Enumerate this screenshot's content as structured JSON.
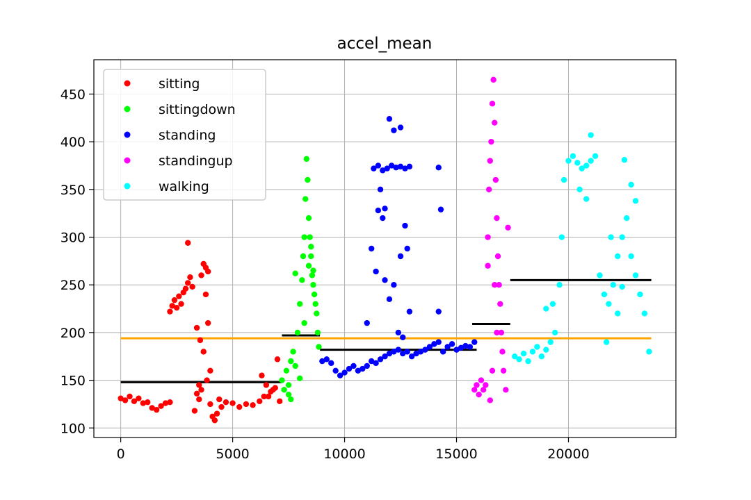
{
  "chart_data": {
    "type": "scatter",
    "title": "accel_mean",
    "xlim": [
      -1200,
      24800
    ],
    "ylim": [
      90,
      486
    ],
    "x_ticks": [
      0,
      5000,
      10000,
      15000,
      20000
    ],
    "y_ticks": [
      100,
      150,
      200,
      250,
      300,
      350,
      400,
      450
    ],
    "grid": true,
    "legend_position": "top-left",
    "series": [
      {
        "name": "sitting",
        "color": "#ff0000",
        "x_range": [
          0,
          7200
        ],
        "mean": 148,
        "points": [
          [
            0,
            131
          ],
          [
            200,
            129
          ],
          [
            400,
            133
          ],
          [
            600,
            128
          ],
          [
            800,
            131
          ],
          [
            1000,
            126
          ],
          [
            1200,
            127
          ],
          [
            1400,
            121
          ],
          [
            1600,
            119
          ],
          [
            1800,
            123
          ],
          [
            2000,
            126
          ],
          [
            2200,
            127
          ],
          [
            2200,
            222
          ],
          [
            2300,
            228
          ],
          [
            2400,
            234
          ],
          [
            2500,
            226
          ],
          [
            2600,
            238
          ],
          [
            2700,
            230
          ],
          [
            2800,
            242
          ],
          [
            2900,
            246
          ],
          [
            3000,
            252
          ],
          [
            3100,
            258
          ],
          [
            3200,
            248
          ],
          [
            3000,
            294
          ],
          [
            3300,
            118
          ],
          [
            3400,
            136
          ],
          [
            3500,
            145
          ],
          [
            3600,
            260
          ],
          [
            3700,
            272
          ],
          [
            3800,
            268
          ],
          [
            3900,
            264
          ],
          [
            3400,
            205
          ],
          [
            3550,
            192
          ],
          [
            3700,
            180
          ],
          [
            3850,
            150
          ],
          [
            4000,
            125
          ],
          [
            4100,
            112
          ],
          [
            4200,
            108
          ],
          [
            4300,
            115
          ],
          [
            4400,
            130
          ],
          [
            4500,
            122
          ],
          [
            4700,
            127
          ],
          [
            5000,
            126
          ],
          [
            5300,
            122
          ],
          [
            5600,
            125
          ],
          [
            5900,
            124
          ],
          [
            6200,
            128
          ],
          [
            6400,
            133
          ],
          [
            6500,
            145
          ],
          [
            6600,
            133
          ],
          [
            6700,
            138
          ],
          [
            6800,
            140
          ],
          [
            6900,
            142
          ],
          [
            7000,
            172
          ],
          [
            7100,
            128
          ],
          [
            6300,
            155
          ],
          [
            3800,
            240
          ],
          [
            3900,
            210
          ],
          [
            4000,
            160
          ],
          [
            3500,
            130
          ],
          [
            3600,
            140
          ]
        ]
      },
      {
        "name": "sittingdown",
        "color": "#00ff00",
        "x_range": [
          7200,
          8900
        ],
        "mean": 197,
        "points": [
          [
            7200,
            150
          ],
          [
            7300,
            140
          ],
          [
            7400,
            160
          ],
          [
            7500,
            145
          ],
          [
            7600,
            170
          ],
          [
            7700,
            180
          ],
          [
            7800,
            165
          ],
          [
            7900,
            200
          ],
          [
            8000,
            230
          ],
          [
            8100,
            255
          ],
          [
            8150,
            280
          ],
          [
            8200,
            300
          ],
          [
            8250,
            340
          ],
          [
            8300,
            382
          ],
          [
            8350,
            360
          ],
          [
            8400,
            320
          ],
          [
            8450,
            300
          ],
          [
            8500,
            280
          ],
          [
            8550,
            260
          ],
          [
            8600,
            250
          ],
          [
            8650,
            240
          ],
          [
            8700,
            230
          ],
          [
            8750,
            220
          ],
          [
            8800,
            200
          ],
          [
            8850,
            185
          ],
          [
            7500,
            135
          ],
          [
            7600,
            130
          ],
          [
            7800,
            262
          ],
          [
            8000,
            152
          ],
          [
            8200,
            210
          ],
          [
            8400,
            270
          ],
          [
            8500,
            290
          ],
          [
            8600,
            265
          ]
        ]
      },
      {
        "name": "standing",
        "color": "#0000ff",
        "x_range": [
          8900,
          15900
        ],
        "mean": 182,
        "points": [
          [
            9000,
            170
          ],
          [
            9200,
            172
          ],
          [
            9400,
            168
          ],
          [
            9600,
            160
          ],
          [
            9800,
            155
          ],
          [
            10000,
            158
          ],
          [
            10200,
            162
          ],
          [
            10400,
            165
          ],
          [
            10600,
            160
          ],
          [
            10800,
            162
          ],
          [
            11000,
            165
          ],
          [
            11200,
            170
          ],
          [
            11400,
            168
          ],
          [
            11600,
            172
          ],
          [
            11800,
            175
          ],
          [
            12000,
            178
          ],
          [
            12200,
            180
          ],
          [
            12400,
            182
          ],
          [
            12600,
            178
          ],
          [
            12800,
            180
          ],
          [
            13000,
            175
          ],
          [
            13200,
            178
          ],
          [
            13400,
            180
          ],
          [
            13600,
            182
          ],
          [
            13800,
            185
          ],
          [
            14000,
            188
          ],
          [
            14200,
            190
          ],
          [
            14400,
            180
          ],
          [
            14600,
            185
          ],
          [
            14800,
            188
          ],
          [
            15000,
            182
          ],
          [
            15200,
            184
          ],
          [
            15400,
            186
          ],
          [
            15600,
            185
          ],
          [
            15800,
            190
          ],
          [
            11300,
            372
          ],
          [
            11500,
            375
          ],
          [
            11700,
            370
          ],
          [
            11900,
            372
          ],
          [
            12100,
            375
          ],
          [
            12300,
            373
          ],
          [
            12500,
            374
          ],
          [
            12700,
            372
          ],
          [
            12900,
            374
          ],
          [
            11600,
            350
          ],
          [
            11800,
            330
          ],
          [
            12000,
            424
          ],
          [
            12200,
            412
          ],
          [
            12500,
            415
          ],
          [
            11500,
            328
          ],
          [
            11700,
            320
          ],
          [
            12800,
            288
          ],
          [
            11200,
            288
          ],
          [
            11800,
            255
          ],
          [
            12200,
            250
          ],
          [
            12500,
            280
          ],
          [
            12900,
            222
          ],
          [
            11400,
            264
          ],
          [
            12000,
            235
          ],
          [
            12700,
            312
          ],
          [
            14200,
            373
          ],
          [
            14300,
            329
          ],
          [
            14200,
            222
          ],
          [
            11000,
            210
          ],
          [
            12400,
            200
          ],
          [
            12600,
            195
          ]
        ]
      },
      {
        "name": "standingup",
        "color": "#ff00ff",
        "x_range": [
          15700,
          17400
        ],
        "mean": 209,
        "points": [
          [
            15800,
            140
          ],
          [
            15900,
            145
          ],
          [
            16000,
            135
          ],
          [
            16100,
            150
          ],
          [
            16200,
            140
          ],
          [
            16300,
            145
          ],
          [
            16400,
            300
          ],
          [
            16450,
            350
          ],
          [
            16500,
            380
          ],
          [
            16550,
            400
          ],
          [
            16600,
            440
          ],
          [
            16650,
            465
          ],
          [
            16700,
            420
          ],
          [
            16750,
            360
          ],
          [
            16800,
            320
          ],
          [
            16850,
            280
          ],
          [
            16900,
            250
          ],
          [
            16950,
            230
          ],
          [
            17000,
            200
          ],
          [
            17050,
            180
          ],
          [
            17100,
            160
          ],
          [
            17200,
            140
          ],
          [
            17300,
            310
          ],
          [
            16500,
            129
          ],
          [
            16600,
            160
          ],
          [
            16700,
            250
          ],
          [
            16800,
            200
          ],
          [
            16400,
            270
          ]
        ]
      },
      {
        "name": "walking",
        "color": "#00ffff",
        "x_range": [
          17400,
          23700
        ],
        "mean": 255,
        "points": [
          [
            17600,
            175
          ],
          [
            17800,
            172
          ],
          [
            18000,
            178
          ],
          [
            18200,
            170
          ],
          [
            18400,
            180
          ],
          [
            18600,
            185
          ],
          [
            18800,
            175
          ],
          [
            19000,
            182
          ],
          [
            19200,
            190
          ],
          [
            19400,
            200
          ],
          [
            19600,
            250
          ],
          [
            19700,
            300
          ],
          [
            19800,
            360
          ],
          [
            20000,
            380
          ],
          [
            20200,
            385
          ],
          [
            20400,
            378
          ],
          [
            20600,
            372
          ],
          [
            20800,
            375
          ],
          [
            21000,
            380
          ],
          [
            21200,
            385
          ],
          [
            21000,
            407
          ],
          [
            20800,
            340
          ],
          [
            20500,
            350
          ],
          [
            21400,
            260
          ],
          [
            21600,
            240
          ],
          [
            21800,
            230
          ],
          [
            22000,
            250
          ],
          [
            22200,
            280
          ],
          [
            22400,
            300
          ],
          [
            22600,
            320
          ],
          [
            22800,
            280
          ],
          [
            23000,
            260
          ],
          [
            23200,
            240
          ],
          [
            23400,
            220
          ],
          [
            23600,
            180
          ],
          [
            22500,
            381
          ],
          [
            22800,
            355
          ],
          [
            21700,
            190
          ],
          [
            21900,
            300
          ],
          [
            22200,
            220
          ],
          [
            23000,
            338
          ],
          [
            22400,
            248
          ],
          [
            19300,
            230
          ],
          [
            19000,
            225
          ]
        ]
      }
    ],
    "overall_mean": {
      "value": 194,
      "x_range": [
        0,
        23700
      ],
      "color": "#ffa500"
    }
  }
}
